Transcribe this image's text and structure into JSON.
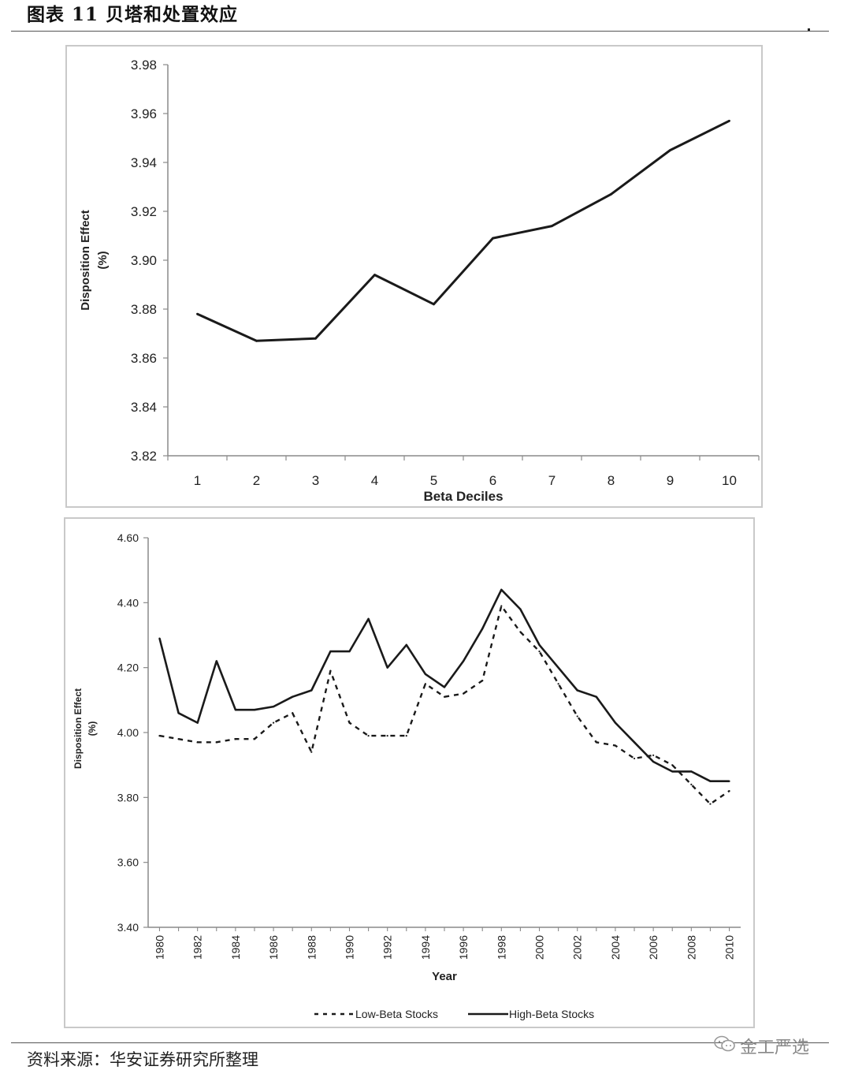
{
  "figure": {
    "title": "图表 11 贝塔和处置效应",
    "source": "资料来源：华安证券研究所整理",
    "watermark_text": "金工严选",
    "watermark_icon": "wechat-icon"
  },
  "chart_data": [
    {
      "type": "line",
      "xlabel": "Beta Deciles",
      "ylabel_line1": "Disposition Effect",
      "ylabel_line2": "(%)",
      "ylim": [
        3.82,
        3.98
      ],
      "yticks": [
        "3.82",
        "3.84",
        "3.86",
        "3.88",
        "3.90",
        "3.92",
        "3.94",
        "3.96",
        "3.98"
      ],
      "categories": [
        "1",
        "2",
        "3",
        "4",
        "5",
        "6",
        "7",
        "8",
        "9",
        "10"
      ],
      "series": [
        {
          "values": [
            3.878,
            3.867,
            3.868,
            3.894,
            3.882,
            3.909,
            3.914,
            3.927,
            3.945,
            3.957
          ]
        }
      ],
      "grid": false,
      "line_color": "#1a1a1a"
    },
    {
      "type": "line",
      "xlabel": "Year",
      "ylabel_line1": "Disposition Effect",
      "ylabel_line2": "(%)",
      "ylim": [
        3.4,
        4.6
      ],
      "yticks": [
        "3.40",
        "3.60",
        "3.80",
        "4.00",
        "4.20",
        "4.40",
        "4.60"
      ],
      "x_labels": [
        "1980",
        "1982",
        "1984",
        "1986",
        "1988",
        "1990",
        "1992",
        "1994",
        "1996",
        "1998",
        "2000",
        "2002",
        "2004",
        "2006",
        "2008",
        "2010"
      ],
      "x": [
        1980,
        1981,
        1982,
        1983,
        1984,
        1985,
        1986,
        1987,
        1988,
        1989,
        1990,
        1991,
        1992,
        1993,
        1994,
        1995,
        1996,
        1997,
        1998,
        1999,
        2000,
        2001,
        2002,
        2003,
        2004,
        2005,
        2006,
        2007,
        2008,
        2009,
        2010
      ],
      "series": [
        {
          "name": "Low-Beta Stocks",
          "style": "dashed",
          "values": [
            3.99,
            3.98,
            3.97,
            3.97,
            3.98,
            3.98,
            4.03,
            4.06,
            3.94,
            4.19,
            4.03,
            3.99,
            3.99,
            3.99,
            4.15,
            4.11,
            4.12,
            4.16,
            4.39,
            4.31,
            4.25,
            4.15,
            4.05,
            3.97,
            3.96,
            3.92,
            3.93,
            3.9,
            3.84,
            3.78,
            3.82
          ]
        },
        {
          "name": "High-Beta Stocks",
          "style": "solid",
          "values": [
            4.29,
            4.06,
            4.03,
            4.22,
            4.07,
            4.07,
            4.08,
            4.11,
            4.13,
            4.25,
            4.25,
            4.35,
            4.2,
            4.27,
            4.18,
            4.14,
            4.22,
            4.32,
            4.44,
            4.38,
            4.27,
            4.2,
            4.13,
            4.11,
            4.03,
            3.97,
            3.91,
            3.88,
            3.88,
            3.85,
            3.85
          ]
        }
      ],
      "legend_position": "bottom-center",
      "grid": false,
      "line_color": "#1a1a1a"
    }
  ]
}
